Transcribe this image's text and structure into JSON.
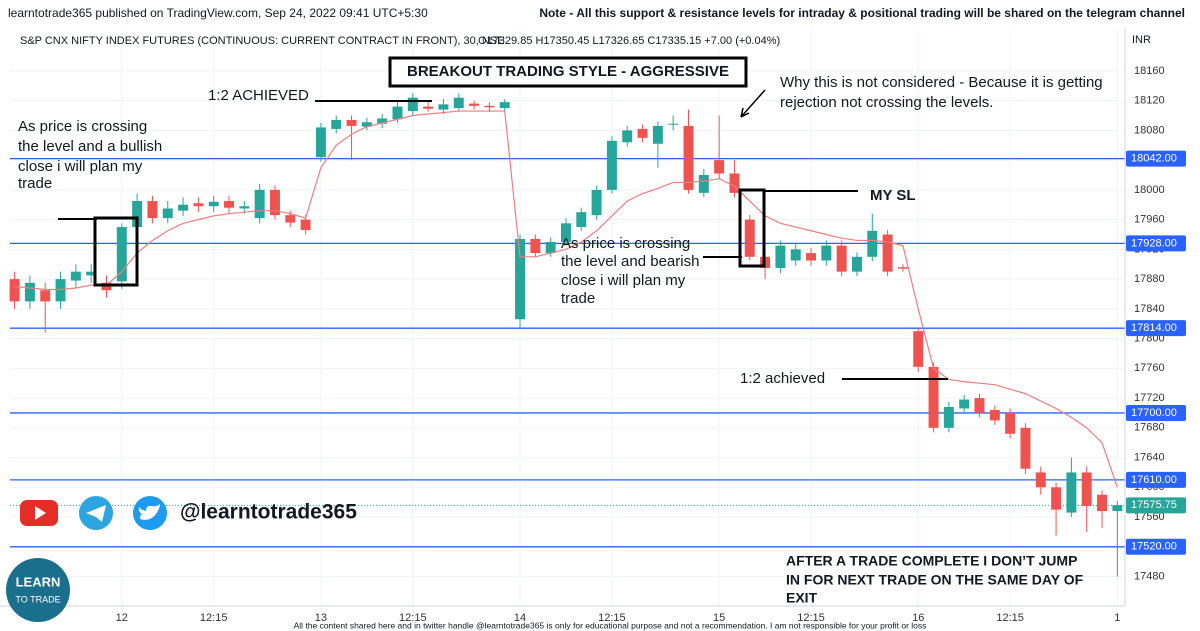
{
  "chart_data": {
    "type": "candlestick",
    "header": "learntotrade365 published on TradingView.com, Sep 24, 2022 09:41 UTC+5:30",
    "note": "Note - All this support & resistance levels for intraday & positional trading will be shared on the telegram channel",
    "symbol": "S&P CNX NIFTY INDEX FUTURES (CONTINUOUS: CURRENT CONTRACT IN FRONT), 30, NSE",
    "ohlc_text": "O17329.85 H17350.45 L17326.65 C17335.15 +7.00 (+0.04%)",
    "currency": "INR",
    "annotations": {
      "title": "BREAKOUT TRADING STYLE - AGGRESSIVE",
      "target_top": "1:2 ACHIEVED",
      "bullish": [
        "As price is crossing",
        "the level and a bullish",
        "close i will plan my",
        "trade"
      ],
      "why": [
        "Why this is not considered - Because it is getting",
        "rejection not crossing the levels."
      ],
      "sl": "MY SL",
      "bearish": [
        "As price is crossing",
        "the level and bearish",
        "close i will plan my",
        "trade"
      ],
      "target_bottom": "1:2 achieved",
      "after": [
        "AFTER A TRADE COMPLETE I DON’T JUMP",
        "IN FOR NEXT TRADE ON THE SAME DAY OF",
        "EXIT"
      ],
      "handle": "@learntotrade365",
      "logo": [
        "LEARN",
        "TO TRADE"
      ],
      "footer": "All the content shared here and in twitter handle @learntotrade365 is only for educational purpose and not a recommendation. I am not responsible for your profit or loss"
    },
    "up_color": "#26a69a",
    "down_color": "#ef5350",
    "overlay_color": "#f07c80",
    "level_color": "#2962ff",
    "open": [
      17880,
      17850,
      17865,
      17850,
      17878,
      17885,
      17875,
      17877,
      17950,
      17985,
      17962,
      17972,
      17982,
      17978,
      17985,
      17975,
      17962,
      18000,
      17966,
      17960,
      18044,
      18082,
      18094,
      18085,
      18089,
      18095,
      18106,
      18112,
      18108,
      18110,
      18116,
      18113,
      18110,
      17826,
      17934,
      17915,
      17930,
      17950,
      17966,
      18000,
      18064,
      18082,
      18062,
      18088,
      18086,
      17996,
      18040,
      18022,
      17960,
      17910,
      17895,
      17905,
      17915,
      17905,
      17925,
      17890,
      17910,
      17940,
      17896,
      17810,
      17762,
      17680,
      17706,
      17720,
      17704,
      17700,
      17680,
      17620,
      17600,
      17566,
      17620,
      17590,
      17568
    ],
    "high": [
      17890,
      17885,
      17875,
      17890,
      17900,
      17900,
      17885,
      17955,
      17995,
      17992,
      17985,
      17990,
      17990,
      17992,
      17992,
      17985,
      18008,
      18006,
      17972,
      17966,
      18090,
      18100,
      18100,
      18097,
      18102,
      18120,
      18130,
      18118,
      18122,
      18130,
      18120,
      18118,
      18122,
      17940,
      17940,
      17936,
      17962,
      17976,
      18006,
      18072,
      18086,
      18088,
      18092,
      18100,
      18108,
      18028,
      18100,
      18040,
      17966,
      17916,
      17932,
      17928,
      17922,
      17932,
      17932,
      17916,
      17968,
      17946,
      17900,
      17815,
      17768,
      17715,
      17724,
      17726,
      17710,
      17706,
      17686,
      17628,
      17606,
      17640,
      17628,
      17596,
      17582
    ],
    "low": [
      17840,
      17840,
      17808,
      17840,
      17868,
      17875,
      17855,
      17867,
      17945,
      17955,
      17955,
      17965,
      17970,
      17970,
      17968,
      17968,
      17955,
      17960,
      17950,
      17940,
      18038,
      18076,
      18040,
      18080,
      18083,
      18090,
      18100,
      18105,
      18102,
      18105,
      18108,
      18105,
      18105,
      17815,
      17910,
      17910,
      17925,
      17945,
      17960,
      17995,
      18058,
      18064,
      18030,
      18080,
      17995,
      17990,
      18015,
      17990,
      17905,
      17880,
      17888,
      17898,
      17898,
      17898,
      17884,
      17884,
      17904,
      17884,
      17890,
      17755,
      17674,
      17674,
      17700,
      17694,
      17684,
      17666,
      17618,
      17590,
      17535,
      17560,
      17540,
      17545,
      17480
    ],
    "close": [
      17850,
      17875,
      17850,
      17880,
      17890,
      17890,
      17865,
      17950,
      17985,
      17962,
      17975,
      17980,
      17978,
      17984,
      17976,
      17978,
      18000,
      17966,
      17956,
      17946,
      18084,
      18094,
      18086,
      18091,
      18096,
      18112,
      18124,
      18109,
      18115,
      18124,
      18113,
      18111,
      18118,
      17934,
      17915,
      17930,
      17955,
      17970,
      18000,
      18066,
      18080,
      18070,
      18086,
      18089,
      18000,
      18020,
      18022,
      17996,
      17910,
      17895,
      17925,
      17920,
      17905,
      17925,
      17890,
      17910,
      17945,
      17890,
      17894,
      17762,
      17680,
      17708,
      17718,
      17700,
      17690,
      17672,
      17625,
      17600,
      17570,
      17620,
      17575,
      17568,
      17576
    ],
    "overlay": [
      17870,
      17868,
      17866,
      17866,
      17868,
      17872,
      17872,
      17890,
      17915,
      17932,
      17945,
      17955,
      17960,
      17965,
      17968,
      17970,
      17972,
      17972,
      17968,
      17962,
      18030,
      18060,
      18075,
      18085,
      18090,
      18095,
      18100,
      18102,
      18104,
      18106,
      18106,
      18106,
      18106,
      17910,
      17910,
      17915,
      17920,
      17930,
      17945,
      17965,
      17985,
      17995,
      18002,
      18010,
      18010,
      18012,
      18015,
      18005,
      17985,
      17965,
      17955,
      17950,
      17945,
      17940,
      17935,
      17932,
      17932,
      17930,
      17925,
      17840,
      17760,
      17745,
      17742,
      17740,
      17738,
      17732,
      17726,
      17716,
      17706,
      17694,
      17680,
      17660,
      17600
    ],
    "xlim": [
      -0.3,
      72.5
    ],
    "xticks": [
      {
        "value": 7,
        "label": "12"
      },
      {
        "value": 13,
        "label": "12:15"
      },
      {
        "value": 20,
        "label": "13"
      },
      {
        "value": 26,
        "label": "12:15"
      },
      {
        "value": 33,
        "label": "14"
      },
      {
        "value": 39,
        "label": "12:15"
      },
      {
        "value": 46,
        "label": "15"
      },
      {
        "value": 52,
        "label": "12:15"
      },
      {
        "value": 59,
        "label": "16"
      },
      {
        "value": 65,
        "label": "12:15"
      },
      {
        "value": 72,
        "label": "1"
      }
    ],
    "ylim": [
      17435,
      18215
    ],
    "yticks": [
      17480,
      17520,
      17560,
      17600,
      17640,
      17680,
      17720,
      17760,
      17800,
      17840,
      17880,
      17920,
      17960,
      18000,
      18040,
      18080,
      18120,
      18160
    ],
    "grid": true,
    "levels": [
      {
        "value": 18042,
        "label": "18042.00"
      },
      {
        "value": 17928,
        "label": "17928.00"
      },
      {
        "value": 17814,
        "label": "17814.00"
      },
      {
        "value": 17700,
        "label": "17700.00"
      },
      {
        "value": 17610,
        "label": "17610.00"
      },
      {
        "value": 17520,
        "label": "17520.00"
      }
    ],
    "last": {
      "value": 17575.75,
      "label": "17575.75"
    }
  }
}
